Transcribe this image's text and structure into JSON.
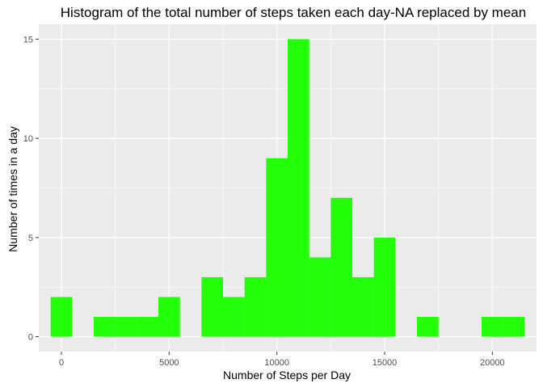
{
  "chart_data": {
    "type": "bar",
    "title": "Histogram of the total number of steps taken each day-NA replaced by mean",
    "xlabel": "Number of Steps per Day",
    "ylabel": "Number of times in a day",
    "xlim": [
      -1050,
      22050
    ],
    "ylim": [
      -0.75,
      15.75
    ],
    "x_ticks": [
      0,
      5000,
      10000,
      15000,
      20000
    ],
    "x_tick_labels": [
      "0",
      "5000",
      "10000",
      "15000",
      "20000"
    ],
    "y_ticks": [
      0,
      5,
      10,
      15
    ],
    "y_tick_labels": [
      "0",
      "5",
      "10",
      "15"
    ],
    "bin_width": 1000,
    "bins": [
      {
        "x": 0,
        "count": 2
      },
      {
        "x": 1000,
        "count": 0
      },
      {
        "x": 2000,
        "count": 1
      },
      {
        "x": 3000,
        "count": 1
      },
      {
        "x": 4000,
        "count": 1
      },
      {
        "x": 5000,
        "count": 2
      },
      {
        "x": 6000,
        "count": 0
      },
      {
        "x": 7000,
        "count": 3
      },
      {
        "x": 8000,
        "count": 2
      },
      {
        "x": 9000,
        "count": 3
      },
      {
        "x": 10000,
        "count": 9
      },
      {
        "x": 11000,
        "count": 15
      },
      {
        "x": 12000,
        "count": 4
      },
      {
        "x": 13000,
        "count": 7
      },
      {
        "x": 14000,
        "count": 3
      },
      {
        "x": 15000,
        "count": 5
      },
      {
        "x": 16000,
        "count": 0
      },
      {
        "x": 17000,
        "count": 1
      },
      {
        "x": 18000,
        "count": 0
      },
      {
        "x": 19000,
        "count": 0
      },
      {
        "x": 20000,
        "count": 1
      },
      {
        "x": 21000,
        "count": 1
      }
    ],
    "grid": true,
    "colors": {
      "bar": "#22ff09",
      "panel": "#ebebeb",
      "grid": "#ffffff"
    }
  }
}
